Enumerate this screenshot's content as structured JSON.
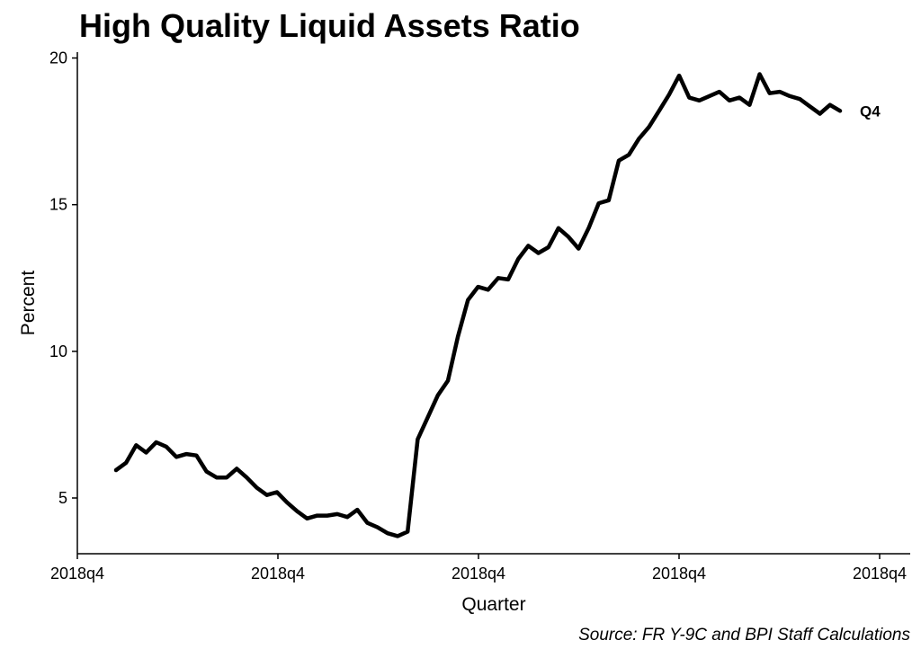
{
  "chart_data": {
    "type": "line",
    "title": "High Quality Liquid Assets Ratio",
    "xlabel": "Quarter",
    "ylabel": "Percent",
    "caption": "Source: FR Y-9C and BPI Staff Calculations",
    "end_label": "Q4",
    "x_tick_labels": [
      "2018q4",
      "2018q4",
      "2018q4",
      "2018q4",
      "2018q4"
    ],
    "y_ticks": [
      5,
      10,
      15,
      20
    ],
    "ylim": [
      3.1,
      20.2
    ],
    "grid": false,
    "legend": "none",
    "series": [
      {
        "color": "#000000",
        "values": [
          5.95,
          6.2,
          6.8,
          6.55,
          6.9,
          6.75,
          6.4,
          6.5,
          6.45,
          5.9,
          5.7,
          5.7,
          6.0,
          5.7,
          5.35,
          5.1,
          5.2,
          4.85,
          4.55,
          4.3,
          4.4,
          4.4,
          4.45,
          4.35,
          4.6,
          4.15,
          4.0,
          3.8,
          3.7,
          3.85,
          7.0,
          7.75,
          8.5,
          9.0,
          10.5,
          11.75,
          12.2,
          12.1,
          12.5,
          12.45,
          13.15,
          13.6,
          13.35,
          13.55,
          14.2,
          13.9,
          13.5,
          14.2,
          15.05,
          15.15,
          16.5,
          16.7,
          17.25,
          17.65,
          18.2,
          18.75,
          19.4,
          18.65,
          18.55,
          18.7,
          18.85,
          18.55,
          18.65,
          18.4,
          19.45,
          18.8,
          18.85,
          18.7,
          18.6,
          18.35,
          18.1,
          18.4,
          18.2
        ]
      }
    ]
  }
}
